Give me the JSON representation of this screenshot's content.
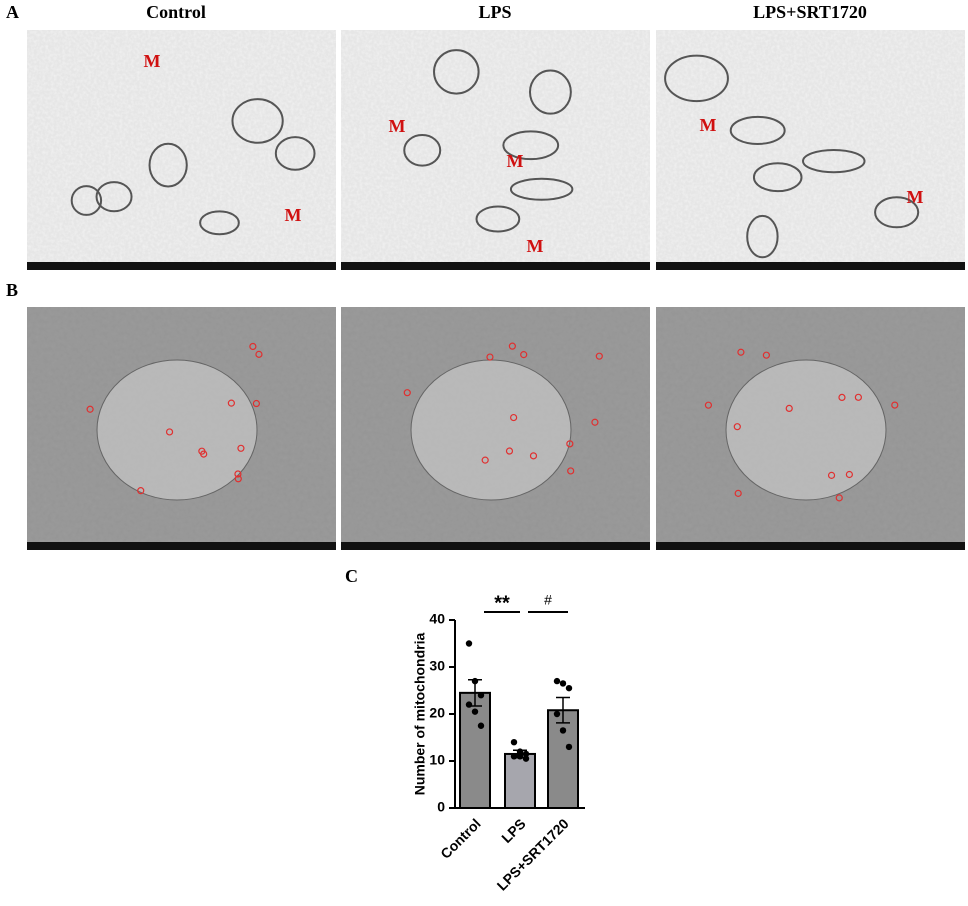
{
  "figure": {
    "panel_labels": [
      "A",
      "B",
      "C"
    ],
    "columns": [
      "Control",
      "LPS",
      "LPS+SRT1720"
    ],
    "panel_a_markers": [
      [
        "M",
        "M"
      ],
      [
        "M",
        "M",
        "M"
      ],
      [
        "M",
        "M"
      ]
    ]
  },
  "chart_data": {
    "type": "bar",
    "ylabel": "Number of mitochondria",
    "categories": [
      "Control",
      "LPS",
      "LPS+SRT1720"
    ],
    "values": [
      24.5,
      11.5,
      20.8
    ],
    "errors": [
      2.8,
      0.8,
      2.7
    ],
    "points": [
      [
        35,
        27,
        24,
        22,
        20.5,
        17.5
      ],
      [
        14,
        12,
        11.5,
        11,
        11,
        10.5
      ],
      [
        27,
        26.5,
        25.5,
        20,
        16.5,
        13
      ]
    ],
    "color": "#8a8a8a",
    "colors": [
      "#8a8a8a",
      "#a6a6ad",
      "#8a8a8a"
    ],
    "ylim": [
      0,
      40
    ],
    "yticks": [
      0,
      10,
      20,
      30,
      40
    ],
    "significance": [
      "**",
      "#"
    ]
  }
}
